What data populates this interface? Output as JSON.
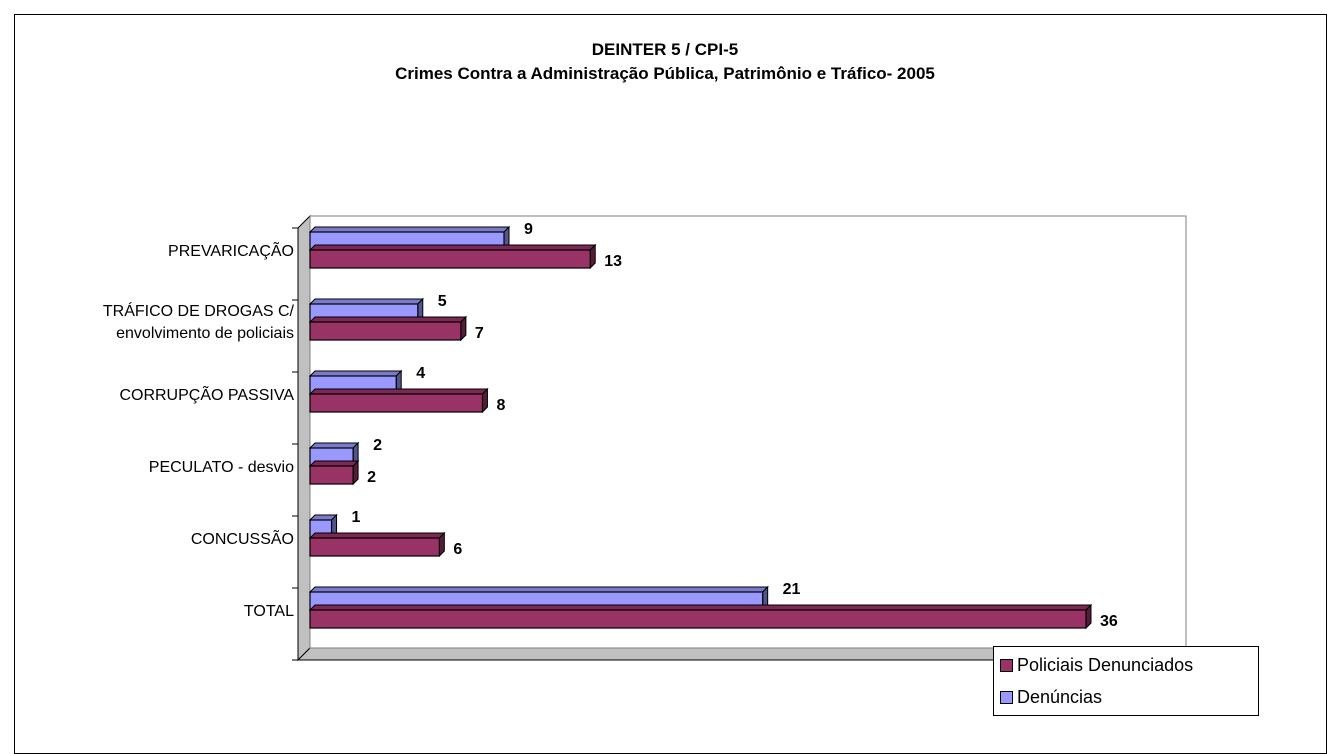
{
  "chart_data": {
    "type": "bar",
    "orientation": "horizontal",
    "title": "DEINTER 5 / CPI-5",
    "subtitle": "Crimes Contra a Administração Pública, Patrimônio e Tráfico- 2005",
    "categories": [
      "PREVARICAÇÃO",
      "TRÁFICO DE DROGAS C/\nenvolvimento de policiais",
      "CORRUPÇÃO PASSIVA",
      "PECULATO - desvio",
      "CONCUSSÃO",
      "TOTAL"
    ],
    "series": [
      {
        "name": "Denúncias",
        "color": "#9999ff",
        "values": [
          9,
          5,
          4,
          2,
          1,
          21
        ]
      },
      {
        "name": "Policiais Denunciados",
        "color": "#993366",
        "values": [
          13,
          7,
          8,
          2,
          6,
          36
        ]
      }
    ],
    "legend_order": [
      "Policiais Denunciados",
      "Denúncias"
    ],
    "legend_position": "bottom-right",
    "grid": false,
    "xlim": [
      0,
      36
    ],
    "data_labels": true
  }
}
